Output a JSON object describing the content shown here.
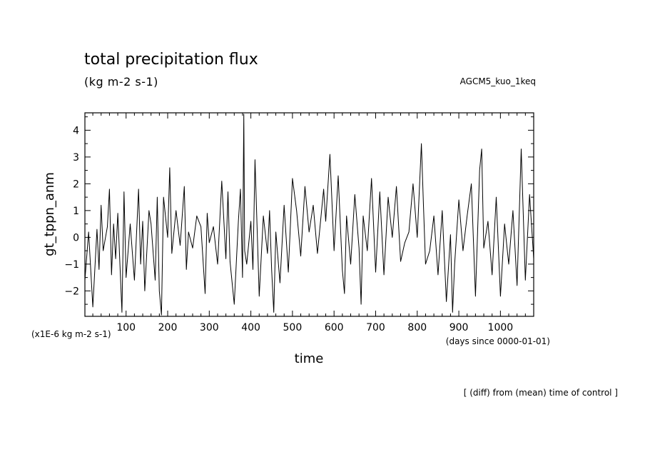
{
  "chart_data": {
    "type": "line",
    "title": "total precipitation flux",
    "units": "(kg m-2 s-1)",
    "experiment": "AGCM5_kuo_1keq",
    "xlabel": "time",
    "ylabel": "gt_tppn_anm",
    "y_scale_label": "(x1E-6 kg m-2 s-1)",
    "x_unit_label": "(days since 0000-01-01)",
    "footnote": "[ (diff) from (mean) time of control ]",
    "xlim": [
      1,
      1080
    ],
    "ylim": [
      -2.95,
      4.65
    ],
    "x_ticks": [
      100,
      200,
      300,
      400,
      500,
      600,
      700,
      800,
      900,
      1000
    ],
    "y_ticks": [
      -2,
      -1,
      0,
      1,
      2,
      3,
      4
    ],
    "series": [
      {
        "color": "#000000",
        "x": [
          1,
          10,
          20,
          30,
          35,
          40,
          45,
          55,
          60,
          65,
          70,
          75,
          80,
          90,
          95,
          100,
          110,
          120,
          130,
          135,
          140,
          145,
          155,
          160,
          170,
          175,
          180,
          185,
          190,
          200,
          205,
          210,
          220,
          230,
          240,
          245,
          250,
          260,
          270,
          280,
          290,
          295,
          300,
          310,
          320,
          330,
          340,
          345,
          350,
          360,
          370,
          375,
          380,
          383,
          385,
          390,
          400,
          405,
          410,
          420,
          430,
          440,
          445,
          450,
          455,
          460,
          470,
          480,
          490,
          500,
          510,
          520,
          530,
          540,
          550,
          560,
          570,
          575,
          580,
          590,
          600,
          610,
          620,
          625,
          630,
          640,
          650,
          660,
          665,
          670,
          680,
          690,
          700,
          710,
          720,
          730,
          740,
          750,
          760,
          770,
          780,
          790,
          800,
          810,
          815,
          820,
          830,
          840,
          850,
          860,
          870,
          880,
          885,
          890,
          900,
          910,
          920,
          930,
          940,
          950,
          955,
          960,
          970,
          980,
          990,
          1000,
          1010,
          1020,
          1030,
          1040,
          1050,
          1060,
          1070,
          1080
        ],
        "y": [
          -1.6,
          0.2,
          -2.6,
          0.3,
          -1.2,
          1.2,
          -0.5,
          0.4,
          1.8,
          -1.4,
          0.5,
          -0.8,
          0.9,
          -2.8,
          1.7,
          -1.5,
          0.5,
          -1.6,
          1.8,
          -1.0,
          0.6,
          -2.0,
          1.0,
          0.5,
          -1.6,
          1.5,
          -2.0,
          -2.9,
          1.5,
          0.0,
          2.6,
          -0.6,
          1.0,
          -0.3,
          1.9,
          -1.2,
          0.2,
          -0.4,
          0.8,
          0.4,
          -2.1,
          0.9,
          -0.2,
          0.4,
          -1.0,
          2.1,
          -0.8,
          1.7,
          -0.9,
          -2.5,
          0.6,
          1.8,
          -1.5,
          4.6,
          -0.5,
          -1.0,
          0.6,
          -1.2,
          2.9,
          -2.2,
          0.8,
          -0.6,
          1.0,
          -1.2,
          -2.8,
          0.2,
          -1.7,
          1.2,
          -1.3,
          2.2,
          1.0,
          -0.7,
          1.9,
          0.2,
          1.2,
          -0.6,
          1.0,
          1.8,
          0.6,
          3.1,
          -0.5,
          2.3,
          -1.2,
          -2.1,
          0.8,
          -1.0,
          1.6,
          -0.4,
          -2.5,
          0.8,
          -0.5,
          2.2,
          -1.3,
          1.7,
          -1.4,
          1.5,
          0.0,
          1.9,
          -0.9,
          -0.2,
          0.2,
          2.0,
          0.0,
          3.5,
          1.2,
          -1.0,
          -0.5,
          0.8,
          -1.4,
          1.0,
          -2.4,
          0.1,
          -2.8,
          -1.0,
          1.4,
          -0.5,
          0.8,
          2.0,
          -2.2,
          2.5,
          3.3,
          -0.4,
          0.6,
          -1.4,
          1.5,
          -2.2,
          0.5,
          -1.0,
          1.0,
          -1.8,
          3.3,
          -1.6,
          1.6,
          -0.8
        ]
      }
    ]
  }
}
